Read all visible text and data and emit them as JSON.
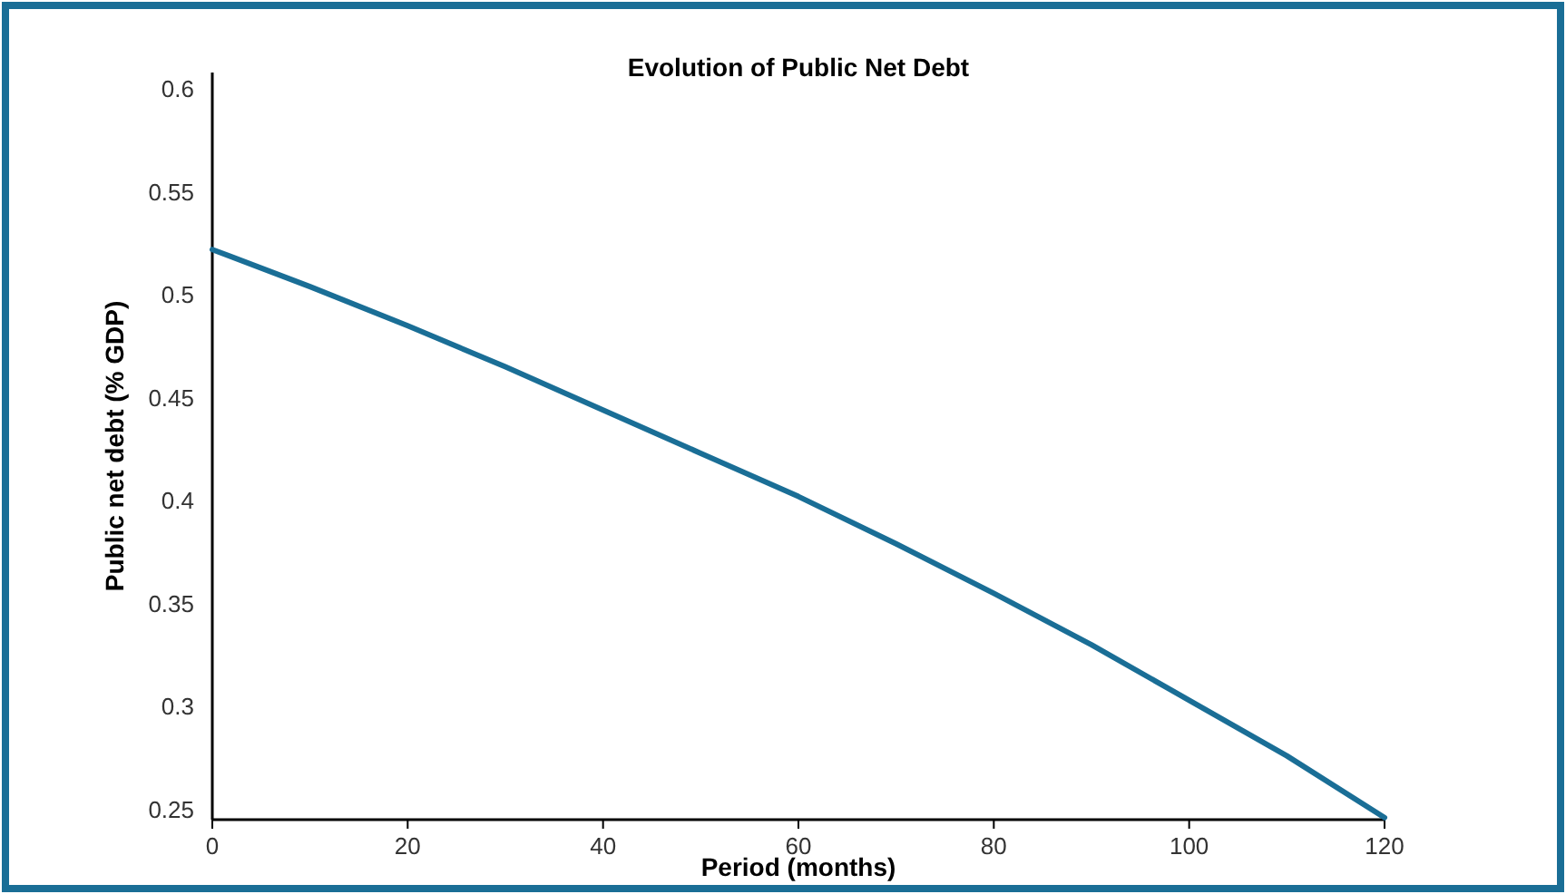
{
  "chart_data": {
    "type": "line",
    "title": "Evolution of Public Net Debt",
    "xlabel": "Period (months)",
    "ylabel": "Public net debt (% GDP)",
    "x": [
      0,
      10,
      20,
      30,
      40,
      50,
      60,
      70,
      80,
      90,
      100,
      110,
      120
    ],
    "series": [
      {
        "color": "#1a6e96",
        "values": [
          0.522,
          0.504,
          0.485,
          0.465,
          0.444,
          0.423,
          0.402,
          0.379,
          0.355,
          0.33,
          0.303,
          0.276,
          0.246
        ]
      }
    ],
    "xlim": [
      0,
      120
    ],
    "xticks": [
      0,
      20,
      40,
      60,
      80,
      100,
      120
    ],
    "ylim": [
      0.245,
      0.608
    ],
    "yticks": [
      {
        "value": 0.25,
        "label": "0.25"
      },
      {
        "value": 0.3,
        "label": "0.3"
      },
      {
        "value": 0.35,
        "label": "0.35"
      },
      {
        "value": 0.4,
        "label": "0.4"
      },
      {
        "value": 0.45,
        "label": "0.45"
      },
      {
        "value": 0.5,
        "label": "0.5"
      },
      {
        "value": 0.55,
        "label": "0.55"
      },
      {
        "value": 0.6,
        "label": "0.6"
      }
    ],
    "marker": "none",
    "line_style": "solid"
  }
}
